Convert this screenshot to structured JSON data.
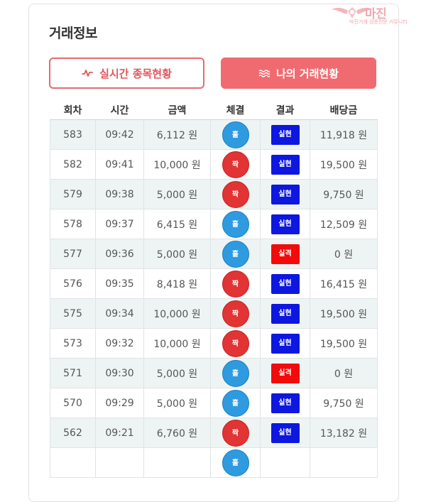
{
  "page": {
    "title": "거래정보"
  },
  "watermark": {
    "text": "마진",
    "subtext": "마진거래 검증전문 커뮤니티"
  },
  "buttons": {
    "realtime": {
      "label": "실시간 종목현황",
      "icon": "pulse-icon"
    },
    "my_trades": {
      "label": "나의 거래현황",
      "icon": "waves-icon"
    }
  },
  "colors": {
    "accent": "#f06b70",
    "odd_ball": "#2e9be0",
    "even_ball": "#e23434",
    "win_badge": "#0d17e0",
    "lose_badge": "#f40a0a"
  },
  "table": {
    "headers": [
      "회차",
      "시간",
      "금액",
      "체결",
      "결과",
      "배당금"
    ],
    "rows": [
      {
        "round": "583",
        "time": "09:42",
        "amount": "6,112 원",
        "pick": "홀",
        "pick_color": "blue",
        "result": "실현",
        "result_type": "win",
        "payout": "11,918 원"
      },
      {
        "round": "582",
        "time": "09:41",
        "amount": "10,000 원",
        "pick": "짝",
        "pick_color": "red",
        "result": "실현",
        "result_type": "win",
        "payout": "19,500 원"
      },
      {
        "round": "579",
        "time": "09:38",
        "amount": "5,000 원",
        "pick": "짝",
        "pick_color": "red",
        "result": "실현",
        "result_type": "win",
        "payout": "9,750 원"
      },
      {
        "round": "578",
        "time": "09:37",
        "amount": "6,415 원",
        "pick": "홀",
        "pick_color": "blue",
        "result": "실현",
        "result_type": "win",
        "payout": "12,509 원"
      },
      {
        "round": "577",
        "time": "09:36",
        "amount": "5,000 원",
        "pick": "홀",
        "pick_color": "blue",
        "result": "실격",
        "result_type": "lose",
        "payout": "0 원"
      },
      {
        "round": "576",
        "time": "09:35",
        "amount": "8,418 원",
        "pick": "짝",
        "pick_color": "red",
        "result": "실현",
        "result_type": "win",
        "payout": "16,415 원"
      },
      {
        "round": "575",
        "time": "09:34",
        "amount": "10,000 원",
        "pick": "짝",
        "pick_color": "red",
        "result": "실현",
        "result_type": "win",
        "payout": "19,500 원"
      },
      {
        "round": "573",
        "time": "09:32",
        "amount": "10,000 원",
        "pick": "짝",
        "pick_color": "red",
        "result": "실현",
        "result_type": "win",
        "payout": "19,500 원"
      },
      {
        "round": "571",
        "time": "09:30",
        "amount": "5,000 원",
        "pick": "홀",
        "pick_color": "blue",
        "result": "실격",
        "result_type": "lose",
        "payout": "0 원"
      },
      {
        "round": "570",
        "time": "09:29",
        "amount": "5,000 원",
        "pick": "홀",
        "pick_color": "blue",
        "result": "실현",
        "result_type": "win",
        "payout": "9,750 원"
      },
      {
        "round": "562",
        "time": "09:21",
        "amount": "6,760 원",
        "pick": "짝",
        "pick_color": "red",
        "result": "실현",
        "result_type": "win",
        "payout": "13,182 원"
      },
      {
        "round": "",
        "time": "",
        "amount": "",
        "pick": "홀",
        "pick_color": "blue",
        "result": "",
        "result_type": "",
        "payout": ""
      }
    ]
  }
}
